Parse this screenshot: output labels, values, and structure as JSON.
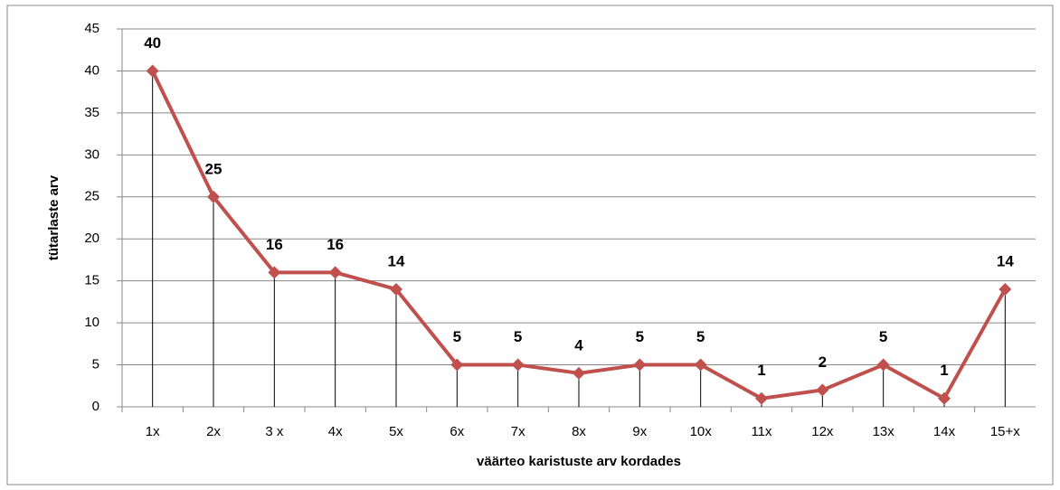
{
  "chart_data": {
    "type": "line",
    "x_label": "väärteo karistuste arv kordades",
    "y_label": "tütarlaste arv",
    "categories": [
      "1x",
      "2x",
      "3 x",
      "4x",
      "5x",
      "6x",
      "7x",
      "8x",
      "9x",
      "10x",
      "11x",
      "12x",
      "13x",
      "14x",
      "15+x"
    ],
    "series": [
      {
        "name": "tütarlaste arv",
        "color": "#c0504d",
        "values": [
          40,
          25,
          16,
          16,
          14,
          5,
          5,
          4,
          5,
          5,
          1,
          2,
          5,
          1,
          14
        ]
      }
    ],
    "ylim": [
      0,
      45
    ],
    "yticks": [
      0,
      5,
      10,
      15,
      20,
      25,
      30,
      35,
      40,
      45
    ],
    "grid": true,
    "drop_lines": true
  }
}
